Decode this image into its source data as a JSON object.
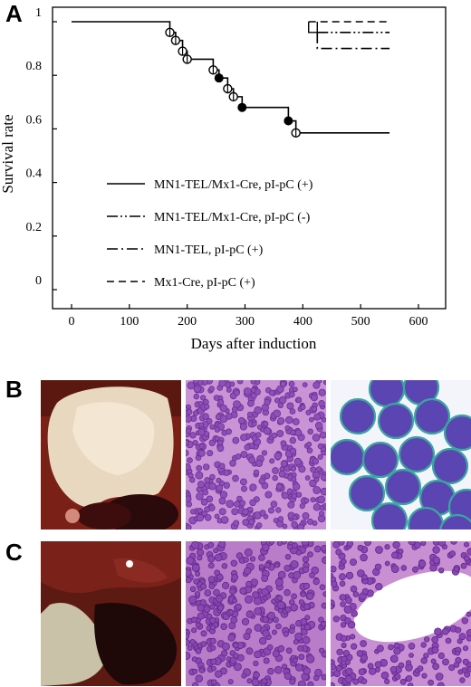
{
  "panels": {
    "a_label": "A",
    "b_label": "B",
    "c_label": "C"
  },
  "chart_data": {
    "type": "line",
    "subtype": "kaplan-meier survival curve",
    "xlabel": "Days after induction",
    "ylabel": "Survival rate",
    "xlim": [
      0,
      600
    ],
    "ylim": [
      0,
      1
    ],
    "x_ticks": [
      "0",
      "100",
      "200",
      "300",
      "400",
      "500",
      "600"
    ],
    "y_ticks": [
      "0",
      "0.2",
      "0.4",
      "0.6",
      "0.8",
      "1"
    ],
    "grid": false,
    "legend_position": "center-left",
    "series": [
      {
        "name": "MN1-TEL/Mx1-Cre, pI-pC (+)",
        "line_style": "solid",
        "steps": [
          [
            0,
            1.0
          ],
          [
            170,
            0.96
          ],
          [
            180,
            0.93
          ],
          [
            192,
            0.89
          ],
          [
            200,
            0.86
          ],
          [
            245,
            0.82
          ],
          [
            255,
            0.79
          ],
          [
            270,
            0.75
          ],
          [
            280,
            0.72
          ],
          [
            295,
            0.68
          ],
          [
            375,
            0.63
          ],
          [
            388,
            0.585
          ],
          [
            550,
            0.585
          ]
        ],
        "censored_open": [
          [
            170,
            0.96
          ],
          [
            180,
            0.93
          ],
          [
            192,
            0.89
          ],
          [
            200,
            0.86
          ],
          [
            245,
            0.82
          ],
          [
            270,
            0.75
          ],
          [
            280,
            0.72
          ],
          [
            388,
            0.585
          ]
        ],
        "censored_filled": [
          [
            255,
            0.79
          ],
          [
            295,
            0.68
          ],
          [
            375,
            0.63
          ]
        ]
      },
      {
        "name": "MN1-TEL/Mx1-Cre, pI-pC (-)",
        "line_style": "dash-dot-dot",
        "steps": [
          [
            425,
            0.96
          ],
          [
            550,
            0.96
          ]
        ]
      },
      {
        "name": "MN1-TEL, pI-pC (+)",
        "line_style": "dash-dot",
        "steps": [
          [
            425,
            0.96
          ],
          [
            425,
            0.9
          ],
          [
            550,
            0.9
          ]
        ]
      },
      {
        "name": "Mx1-Cre, pI-pC (+)",
        "line_style": "dashed",
        "steps": [
          [
            410,
            1.0
          ],
          [
            550,
            1.0
          ]
        ]
      }
    ]
  }
}
